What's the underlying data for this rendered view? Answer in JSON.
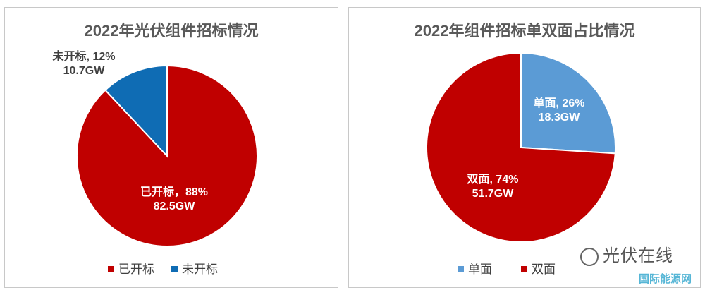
{
  "chart_data": [
    {
      "type": "pie",
      "title": "2022年光伏组件招标情况",
      "categories": [
        "已开标",
        "未开标"
      ],
      "values": [
        88,
        12
      ],
      "capacity_labels": [
        "82.5GW",
        "10.7GW"
      ],
      "data_labels": [
        {
          "line1": "已开标，88%",
          "line2": "82.5GW"
        },
        {
          "line1": "未开标, 12%",
          "line2": "10.7GW"
        }
      ],
      "colors": [
        "#C00000",
        "#0F6CB4"
      ],
      "legend_position": "bottom"
    },
    {
      "type": "pie",
      "title": "2022年组件招标单双面占比情况",
      "categories": [
        "单面",
        "双面"
      ],
      "values": [
        26,
        74
      ],
      "capacity_labels": [
        "18.3GW",
        "51.7GW"
      ],
      "data_labels": [
        {
          "line1": "单面, 26%",
          "line2": "18.3GW"
        },
        {
          "line1": "双面, 74%",
          "line2": "51.7GW"
        }
      ],
      "colors": [
        "#5B9BD5",
        "#C00000"
      ],
      "legend_position": "bottom"
    }
  ],
  "legend_left": [
    {
      "label": "已开标",
      "color": "#C00000"
    },
    {
      "label": "未开标",
      "color": "#0F6CB4"
    }
  ],
  "legend_right": [
    {
      "label": "单面",
      "color": "#5B9BD5"
    },
    {
      "label": "双面",
      "color": "#C00000"
    }
  ],
  "watermark": {
    "text": "光伏在线",
    "subtext": "国际能源网"
  }
}
